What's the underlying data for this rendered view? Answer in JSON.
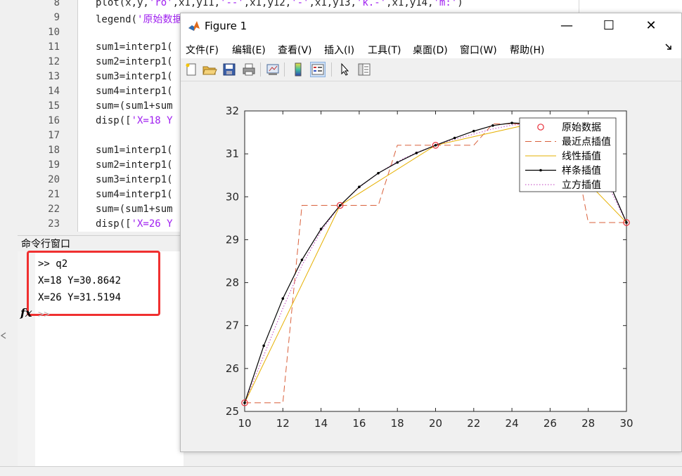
{
  "editor": {
    "lines": [
      {
        "num": "8",
        "code": "plot(x,y,'ro',x1,y11,'--',x1,y12,'-',x1,y13,'k.-',x1,y14,'m:')"
      },
      {
        "num": "9",
        "code": "legend('原始数据','最近点插值','线性插值','样条插值','立方插值')"
      },
      {
        "num": "10",
        "code": ""
      },
      {
        "num": "11",
        "code": "sum1=interp1("
      },
      {
        "num": "12",
        "code": "sum2=interp1("
      },
      {
        "num": "13",
        "code": "sum3=interp1("
      },
      {
        "num": "14",
        "code": "sum4=interp1("
      },
      {
        "num": "15",
        "code": "sum=(sum1+sum"
      },
      {
        "num": "16",
        "code": "disp(['X=18 Y"
      },
      {
        "num": "17",
        "code": ""
      },
      {
        "num": "18",
        "code": "sum1=interp1("
      },
      {
        "num": "19",
        "code": "sum2=interp1("
      },
      {
        "num": "20",
        "code": "sum3=interp1("
      },
      {
        "num": "21",
        "code": "sum4=interp1("
      },
      {
        "num": "22",
        "code": "sum=(sum1+sum"
      },
      {
        "num": "23",
        "code": "disp(['X=26 Y"
      }
    ]
  },
  "command_window": {
    "title": "命令行窗口",
    "lines": [
      ">> q2",
      "X=18 Y=30.8642",
      "X=26 Y=31.5194"
    ],
    "fx_symbol": "fx",
    "prompt": ">>"
  },
  "figure": {
    "title": "Figure 1",
    "window_controls": {
      "minimize": "—",
      "maximize": "☐",
      "close": "✕"
    },
    "menu": [
      "文件(F)",
      "编辑(E)",
      "查看(V)",
      "插入(I)",
      "工具(T)",
      "桌面(D)",
      "窗口(W)",
      "帮助(H)"
    ],
    "toolbar_icons": [
      "new-figure-icon",
      "open-file-icon",
      "save-icon",
      "print-icon",
      "link-plot-icon",
      "colorbar-icon",
      "legend-icon",
      "pointer-icon",
      "property-editor-icon"
    ]
  },
  "chart_data": {
    "type": "line",
    "xlim": [
      10,
      30
    ],
    "ylim": [
      25,
      32
    ],
    "xticks": [
      10,
      12,
      14,
      16,
      18,
      20,
      22,
      24,
      26,
      28,
      30
    ],
    "yticks": [
      25,
      26,
      27,
      28,
      29,
      30,
      31,
      32
    ],
    "legend_position": "top-right",
    "series": [
      {
        "name": "原始数据",
        "style": "ro",
        "color": "#e8303a",
        "x": [
          10,
          15,
          20,
          25,
          30
        ],
        "y": [
          25.2,
          29.8,
          31.2,
          31.7,
          29.4
        ]
      },
      {
        "name": "最近点插值",
        "style": "--",
        "color": "#d9603b",
        "x": [
          10,
          11,
          12,
          13,
          14,
          15,
          16,
          17,
          18,
          19,
          20,
          21,
          22,
          23,
          24,
          25,
          26,
          27,
          28,
          29,
          30
        ],
        "y": [
          25.2,
          25.2,
          25.2,
          29.8,
          29.8,
          29.8,
          29.8,
          29.8,
          31.2,
          31.2,
          31.2,
          31.2,
          31.2,
          31.7,
          31.7,
          31.7,
          31.7,
          31.7,
          29.4,
          29.4,
          29.4
        ]
      },
      {
        "name": "线性插值",
        "style": "-",
        "color": "#e6b000",
        "x": [
          10,
          15,
          20,
          25,
          30
        ],
        "y": [
          25.2,
          29.8,
          31.2,
          31.7,
          29.4
        ]
      },
      {
        "name": "样条插值",
        "style": "k.-",
        "color": "#000000",
        "x": [
          10,
          11,
          12,
          13,
          14,
          15,
          16,
          17,
          18,
          19,
          20,
          21,
          22,
          23,
          24,
          25,
          26,
          27,
          28,
          29,
          30
        ],
        "y": [
          25.2,
          26.53,
          27.63,
          28.53,
          29.25,
          29.8,
          30.23,
          30.55,
          30.8,
          31.02,
          31.2,
          31.37,
          31.53,
          31.66,
          31.72,
          31.7,
          31.6,
          31.39,
          31.05,
          30.42,
          29.4
        ]
      },
      {
        "name": "立方插值",
        "style": "m:",
        "color": "#bf3fbf",
        "x": [
          10,
          11,
          12,
          13,
          14,
          15,
          16,
          17,
          18,
          19,
          20,
          21,
          22,
          23,
          24,
          25,
          26,
          27,
          28,
          29,
          30
        ],
        "y": [
          25.2,
          26.3,
          27.4,
          28.4,
          29.2,
          29.8,
          30.22,
          30.55,
          30.82,
          31.03,
          31.2,
          31.34,
          31.46,
          31.58,
          31.67,
          31.7,
          31.62,
          31.38,
          30.98,
          30.3,
          29.4
        ]
      }
    ]
  }
}
